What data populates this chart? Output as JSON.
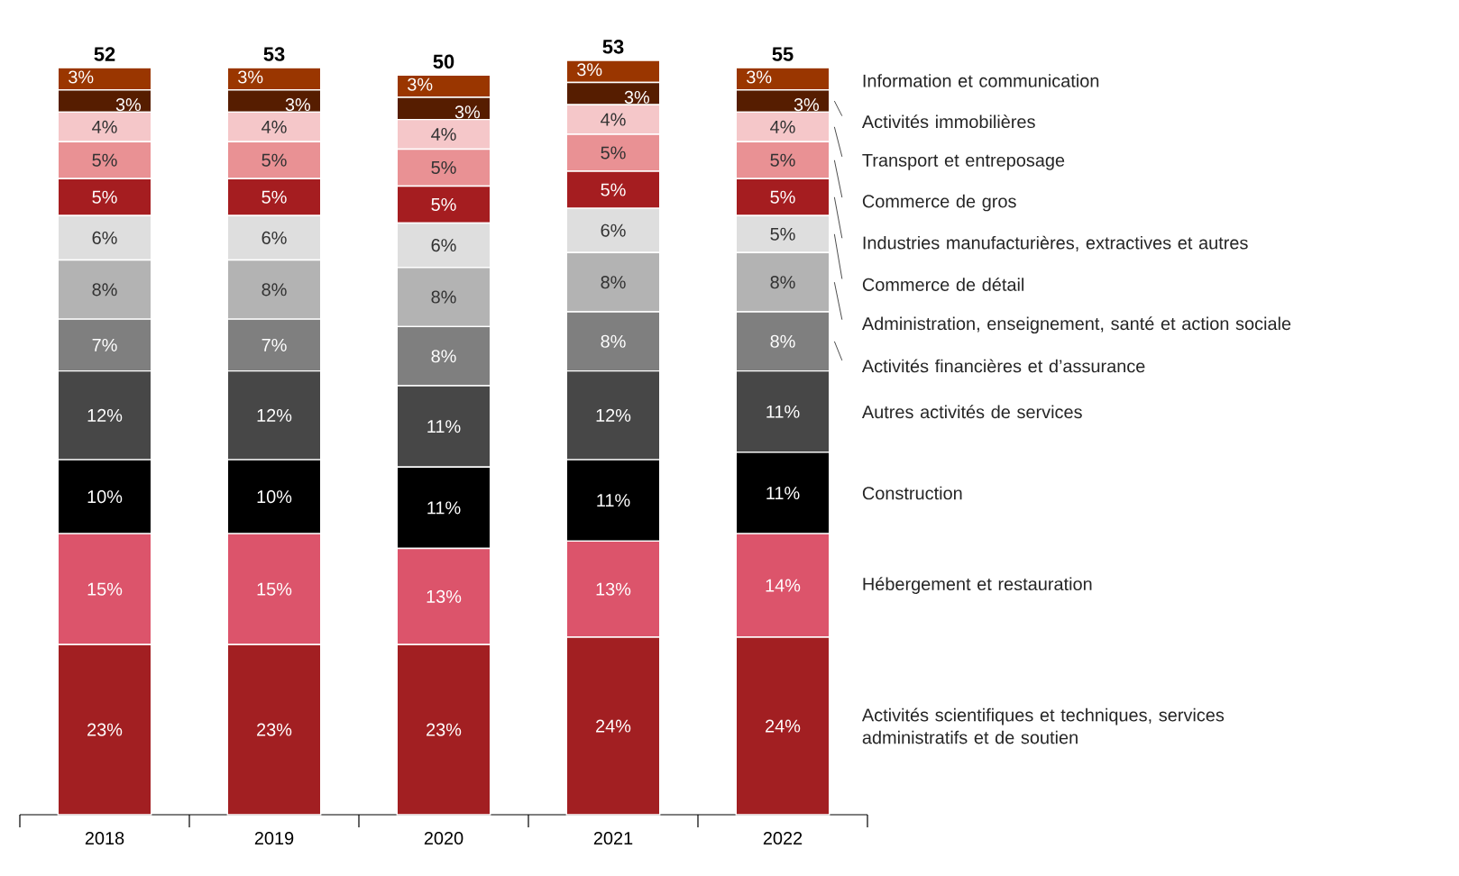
{
  "chart_data": {
    "type": "bar",
    "stacked": true,
    "legend": "right",
    "categories": [
      "2018",
      "2019",
      "2020",
      "2021",
      "2022"
    ],
    "annotations": [
      "52",
      "53",
      "50",
      "53",
      "55"
    ],
    "series": [
      {
        "name": "Activités scientifiques et techniques, services administratifs et de soutien",
        "color": "#a21f22",
        "values": [
          23,
          23,
          23,
          24,
          24
        ],
        "value_labels": [
          "23%",
          "23%",
          "23%",
          "24%",
          "24%"
        ]
      },
      {
        "name": "Hébergement et restauration",
        "color": "#dc546b",
        "values": [
          15,
          15,
          13,
          13,
          14
        ],
        "value_labels": [
          "15%",
          "15%",
          "13%",
          "13%",
          "14%"
        ]
      },
      {
        "name": "Construction",
        "color": "#000000",
        "values": [
          10,
          10,
          11,
          11,
          11
        ],
        "value_labels": [
          "10%",
          "10%",
          "11%",
          "11%",
          "11%"
        ]
      },
      {
        "name": "Autres activités de services",
        "color": "#474747",
        "values": [
          12,
          12,
          11,
          12,
          11
        ],
        "value_labels": [
          "12%",
          "12%",
          "11%",
          "12%",
          "11%"
        ]
      },
      {
        "name": "Activités financières et d’assurance",
        "color": "#7f7f7f",
        "values": [
          7,
          7,
          8,
          8,
          8
        ],
        "value_labels": [
          "7%",
          "7%",
          "8%",
          "8%",
          "8%"
        ]
      },
      {
        "name": "Administration, enseignement, santé et action sociale",
        "color": "#b3b3b3",
        "values": [
          8,
          8,
          8,
          8,
          8
        ],
        "value_labels": [
          "8%",
          "8%",
          "8%",
          "8%",
          "8%"
        ]
      },
      {
        "name": "Commerce de détail",
        "color": "#dedede",
        "values": [
          6,
          6,
          6,
          6,
          5
        ],
        "value_labels": [
          "6%",
          "6%",
          "6%",
          "6%",
          "5%"
        ]
      },
      {
        "name": "Industries manufacturières, extractives et autres",
        "color": "#a51d20",
        "values": [
          5,
          5,
          5,
          5,
          5
        ],
        "value_labels": [
          "5%",
          "5%",
          "5%",
          "5%",
          "5%"
        ]
      },
      {
        "name": "Commerce de gros",
        "color": "#e99194",
        "values": [
          5,
          5,
          5,
          5,
          5
        ],
        "value_labels": [
          "5%",
          "5%",
          "5%",
          "5%",
          "5%"
        ]
      },
      {
        "name": "Transport et entreposage",
        "color": "#f5c7c9",
        "values": [
          4,
          4,
          4,
          4,
          4
        ],
        "value_labels": [
          "4%",
          "4%",
          "4%",
          "4%",
          "4%"
        ]
      },
      {
        "name": "Activités immobilières",
        "color": "#561d00",
        "values": [
          3,
          3,
          3,
          3,
          3
        ],
        "value_labels": [
          "3%",
          "3%",
          "3%",
          "3%",
          "3%"
        ]
      },
      {
        "name": "Information et communication",
        "color": "#9a3600",
        "values": [
          3,
          3,
          3,
          3,
          3
        ],
        "value_labels": [
          "3%",
          "3%",
          "3%",
          "3%",
          "3%"
        ]
      }
    ]
  }
}
